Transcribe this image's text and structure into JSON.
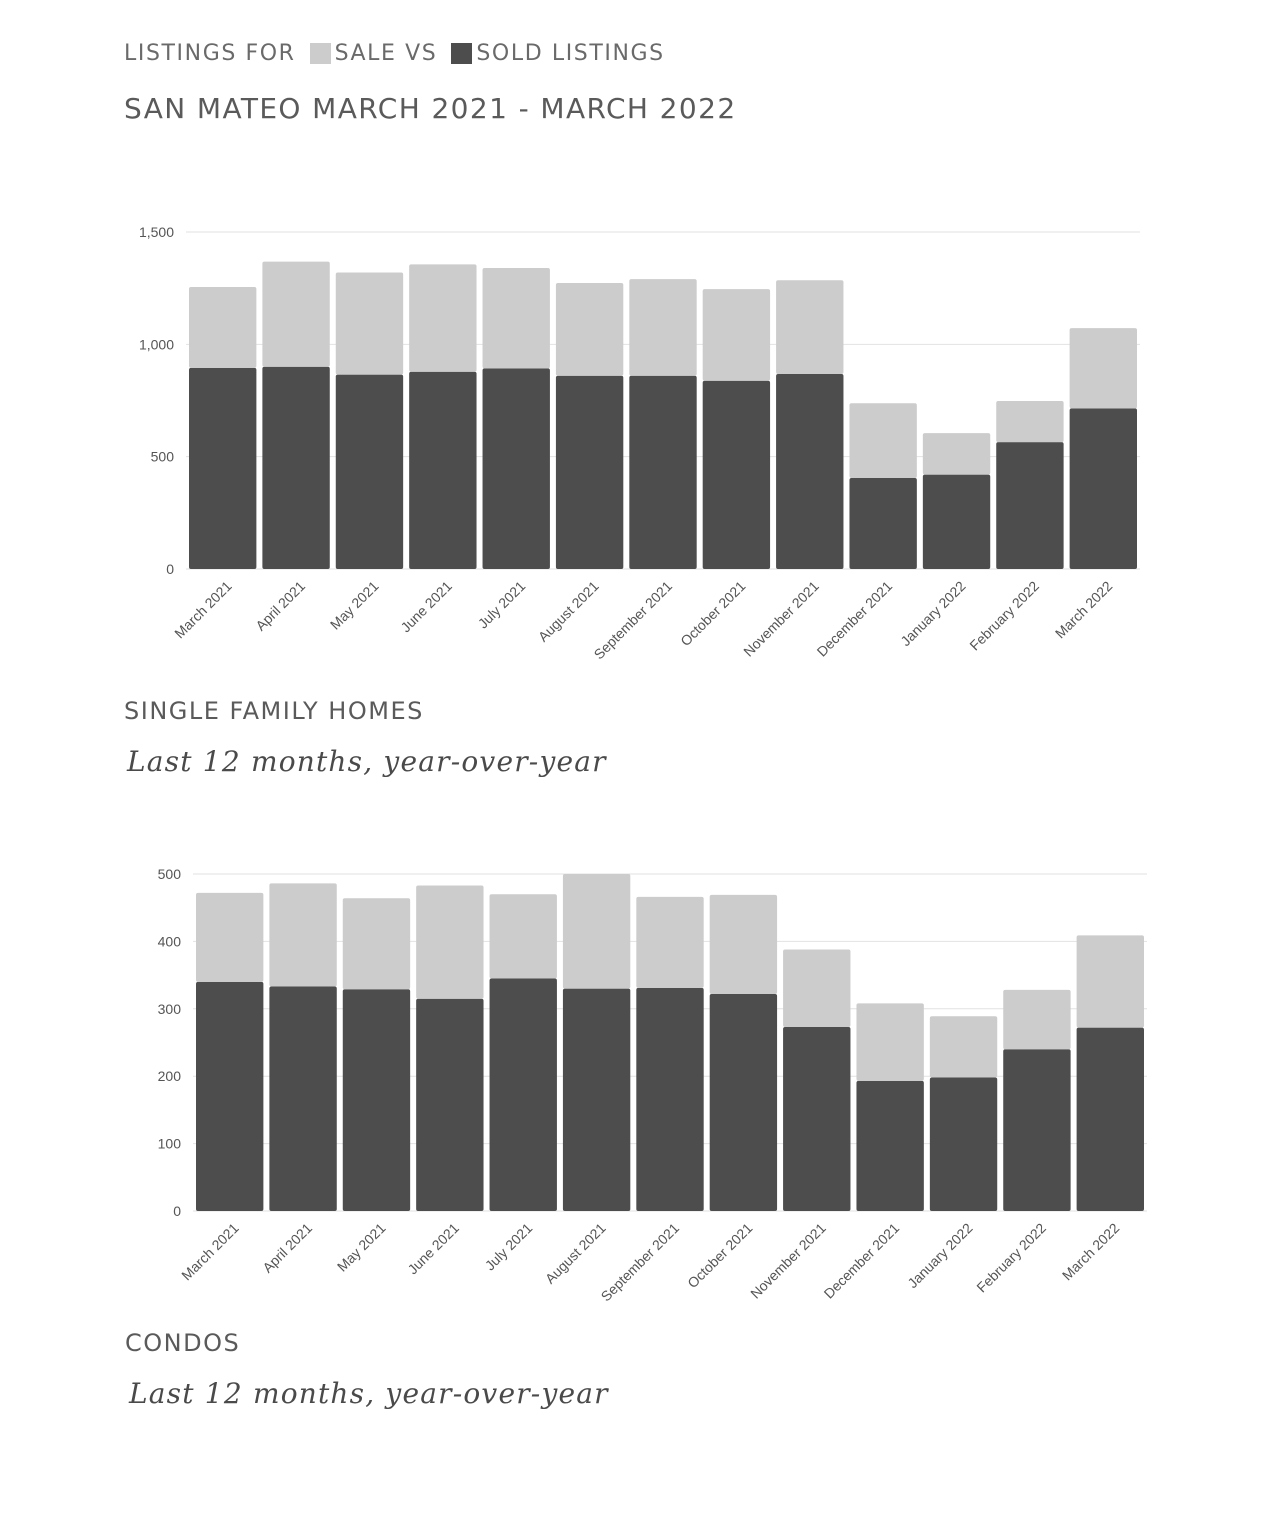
{
  "header": {
    "line_part1": "LISTINGS FOR",
    "line_part2": "SALE VS",
    "line_part3": "SOLD LISTINGS",
    "title": "SAN MATEO MARCH 2021 - MARCH 2022"
  },
  "colors": {
    "for_sale": "#cccccc",
    "sold": "#4d4d4d",
    "grid": "#e2e2e2"
  },
  "sections": [
    {
      "title": "SINGLE FAMILY HOMES",
      "subtitle": "Last 12 months, year-over-year"
    },
    {
      "title": "CONDOS",
      "subtitle": "Last 12 months, year-over-year"
    }
  ],
  "chart_data": [
    {
      "type": "bar",
      "stacked": true,
      "categories": [
        "March 2021",
        "April 2021",
        "May 2021",
        "June 2021",
        "July 2021",
        "August 2021",
        "September 2021",
        "October 2021",
        "November 2021",
        "December 2021",
        "January 2022",
        "February 2022",
        "March 2022"
      ],
      "series": [
        {
          "name": "SOLD LISTINGS",
          "color": "#4d4d4d",
          "values": [
            895,
            900,
            865,
            878,
            893,
            860,
            860,
            838,
            868,
            405,
            420,
            565,
            715
          ]
        },
        {
          "name": "SALE VS",
          "color": "#cccccc",
          "values": [
            360,
            468,
            455,
            478,
            447,
            413,
            430,
            408,
            417,
            333,
            185,
            183,
            357
          ]
        }
      ],
      "ylim": [
        0,
        1500
      ],
      "yticks": [
        0,
        500,
        1000,
        1500
      ],
      "ytick_labels": [
        "0",
        "500",
        "1,000",
        "1,500"
      ],
      "grid": true
    },
    {
      "type": "bar",
      "stacked": true,
      "categories": [
        "March 2021",
        "April 2021",
        "May 2021",
        "June 2021",
        "July 2021",
        "August 2021",
        "September 2021",
        "October 2021",
        "November 2021",
        "December 2021",
        "January 2022",
        "February 2022",
        "March 2022"
      ],
      "series": [
        {
          "name": "SOLD LISTINGS",
          "color": "#4d4d4d",
          "values": [
            340,
            333,
            329,
            315,
            345,
            330,
            331,
            322,
            273,
            193,
            198,
            240,
            272
          ]
        },
        {
          "name": "SALE VS",
          "color": "#cccccc",
          "values": [
            132,
            153,
            135,
            168,
            125,
            170,
            135,
            147,
            115,
            115,
            91,
            88,
            137
          ]
        }
      ],
      "ylim": [
        0,
        500
      ],
      "yticks": [
        0,
        100,
        200,
        300,
        400,
        500
      ],
      "ytick_labels": [
        "0",
        "100",
        "200",
        "300",
        "400",
        "500"
      ],
      "grid": true
    }
  ]
}
